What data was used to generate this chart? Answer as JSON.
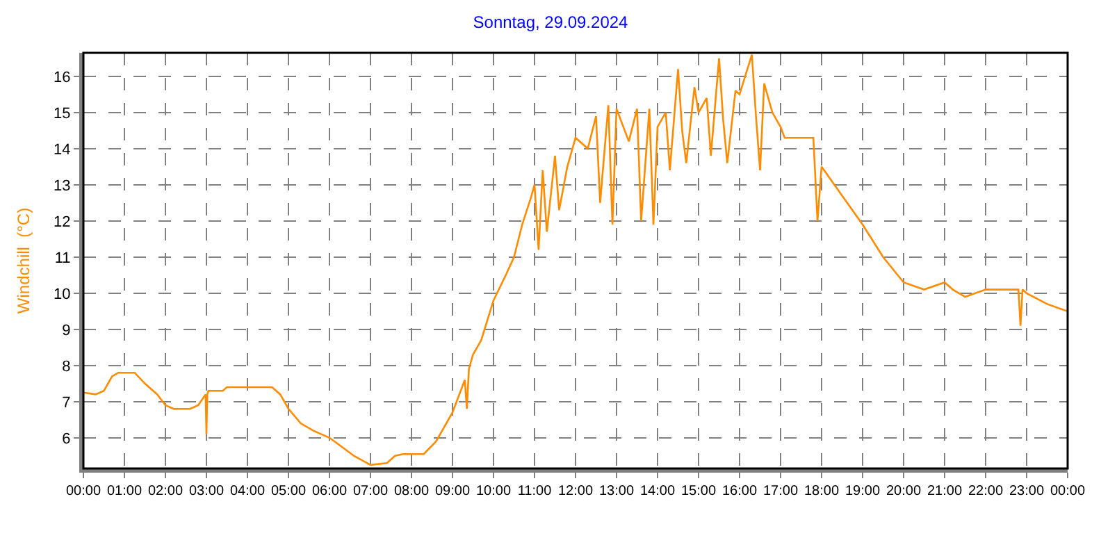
{
  "chart_data": {
    "type": "line",
    "title": "Sonntag, 29.09.2024",
    "ylabel": "Windchill  (°C)",
    "x": [
      0,
      0.3,
      0.5,
      0.7,
      0.85,
      1.25,
      1.5,
      1.8,
      2.0,
      2.2,
      2.6,
      2.8,
      2.98,
      3.0,
      3.02,
      3.05,
      3.4,
      3.5,
      4.6,
      4.8,
      5.0,
      5.3,
      5.6,
      6.0,
      6.3,
      6.6,
      7.0,
      7.4,
      7.6,
      7.8,
      8.3,
      8.6,
      9.0,
      9.2,
      9.3,
      9.35,
      9.4,
      9.5,
      9.7,
      10.0,
      10.3,
      10.5,
      10.7,
      10.9,
      11.0,
      11.1,
      11.2,
      11.3,
      11.5,
      11.6,
      11.8,
      12.0,
      12.3,
      12.5,
      12.6,
      12.8,
      12.9,
      13.0,
      13.3,
      13.5,
      13.6,
      13.8,
      13.9,
      14.0,
      14.2,
      14.3,
      14.5,
      14.6,
      14.7,
      14.9,
      15.0,
      15.2,
      15.3,
      15.5,
      15.6,
      15.7,
      15.9,
      16.0,
      16.3,
      16.4,
      16.5,
      16.6,
      16.8,
      17.0,
      17.1,
      17.5,
      17.8,
      17.9,
      18.0,
      18.5,
      19.0,
      19.5,
      20.0,
      20.5,
      21.0,
      21.2,
      21.5,
      22.0,
      22.8,
      22.85,
      22.9,
      23.0,
      23.5,
      24.0
    ],
    "series": [
      {
        "color": "#ff8c00",
        "values": [
          7.25,
          7.2,
          7.3,
          7.7,
          7.8,
          7.8,
          7.5,
          7.2,
          6.9,
          6.8,
          6.8,
          6.9,
          7.2,
          6.1,
          7.2,
          7.3,
          7.3,
          7.4,
          7.4,
          7.2,
          6.8,
          6.4,
          6.2,
          6.0,
          5.75,
          5.5,
          5.25,
          5.3,
          5.5,
          5.55,
          5.55,
          5.9,
          6.7,
          7.3,
          7.6,
          6.8,
          7.9,
          8.3,
          8.7,
          9.8,
          10.5,
          11.0,
          11.9,
          12.6,
          13.0,
          11.2,
          13.4,
          11.7,
          13.8,
          12.3,
          13.5,
          14.3,
          14.0,
          14.9,
          12.5,
          15.2,
          11.9,
          15.1,
          14.2,
          15.1,
          12.0,
          15.1,
          11.9,
          14.6,
          15.0,
          13.4,
          16.2,
          14.5,
          13.6,
          15.7,
          15.0,
          15.4,
          13.8,
          16.5,
          14.8,
          13.6,
          15.6,
          15.5,
          16.6,
          14.9,
          13.4,
          15.8,
          15.0,
          14.6,
          14.3,
          14.3,
          14.3,
          12.0,
          13.5,
          12.7,
          11.9,
          11.0,
          10.3,
          10.1,
          10.3,
          10.1,
          9.9,
          10.1,
          10.1,
          9.1,
          10.1,
          10.0,
          9.7,
          9.5
        ]
      }
    ],
    "xlim": [
      0,
      24
    ],
    "ylim": [
      5.15,
      16.65
    ],
    "xticks": [
      {
        "value": 0,
        "label": "00:00"
      },
      {
        "value": 1,
        "label": "01:00"
      },
      {
        "value": 2,
        "label": "02:00"
      },
      {
        "value": 3,
        "label": "03:00"
      },
      {
        "value": 4,
        "label": "04:00"
      },
      {
        "value": 5,
        "label": "05:00"
      },
      {
        "value": 6,
        "label": "06:00"
      },
      {
        "value": 7,
        "label": "07:00"
      },
      {
        "value": 8,
        "label": "08:00"
      },
      {
        "value": 9,
        "label": "09:00"
      },
      {
        "value": 10,
        "label": "10:00"
      },
      {
        "value": 11,
        "label": "11:00"
      },
      {
        "value": 12,
        "label": "12:00"
      },
      {
        "value": 13,
        "label": "13:00"
      },
      {
        "value": 14,
        "label": "14:00"
      },
      {
        "value": 15,
        "label": "15:00"
      },
      {
        "value": 16,
        "label": "16:00"
      },
      {
        "value": 17,
        "label": "17:00"
      },
      {
        "value": 18,
        "label": "18:00"
      },
      {
        "value": 19,
        "label": "19:00"
      },
      {
        "value": 20,
        "label": "20:00"
      },
      {
        "value": 21,
        "label": "21:00"
      },
      {
        "value": 22,
        "label": "22:00"
      },
      {
        "value": 23,
        "label": "23:00"
      },
      {
        "value": 24,
        "label": "00:00"
      }
    ],
    "yticks": [
      6,
      7,
      8,
      9,
      10,
      11,
      12,
      13,
      14,
      15,
      16
    ],
    "grid": true,
    "marker": "none",
    "line_style": "solid"
  }
}
